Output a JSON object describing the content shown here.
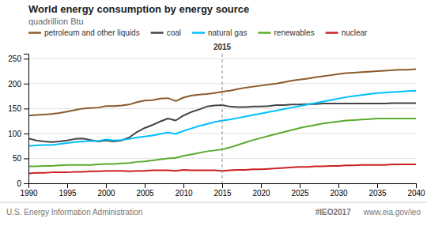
{
  "chart_data": {
    "type": "line",
    "title": "World energy consumption by energy source",
    "subtitle": "quadrillion Btu",
    "x": [
      1990,
      1991,
      1992,
      1993,
      1994,
      1995,
      1996,
      1997,
      1998,
      1999,
      2000,
      2001,
      2002,
      2003,
      2004,
      2005,
      2006,
      2007,
      2008,
      2009,
      2010,
      2011,
      2012,
      2013,
      2014,
      2015,
      2016,
      2017,
      2018,
      2019,
      2020,
      2021,
      2022,
      2023,
      2024,
      2025,
      2026,
      2027,
      2028,
      2029,
      2030,
      2031,
      2032,
      2033,
      2034,
      2035,
      2036,
      2037,
      2038,
      2039,
      2040
    ],
    "series": [
      {
        "name": "petroleum and other liquids",
        "color": "#8B5A2B",
        "values": [
          136,
          137,
          138,
          139,
          141,
          144,
          147,
          150,
          151,
          152,
          155,
          155,
          156,
          158,
          163,
          166,
          167,
          170,
          171,
          165,
          172,
          176,
          178,
          179,
          181,
          184,
          186,
          189,
          192,
          194,
          196,
          198,
          200,
          203,
          206,
          208,
          210,
          213,
          215,
          217,
          219,
          221,
          222,
          223,
          224,
          225,
          226,
          227,
          228,
          228,
          229
        ]
      },
      {
        "name": "coal",
        "color": "#444444",
        "values": [
          90,
          86,
          84,
          83,
          84,
          86,
          89,
          90,
          87,
          84,
          86,
          84,
          86,
          92,
          103,
          111,
          117,
          124,
          130,
          126,
          136,
          143,
          148,
          154,
          156,
          157,
          154,
          153,
          153,
          154,
          154,
          155,
          157,
          157,
          158,
          158,
          159,
          159,
          160,
          160,
          160,
          160,
          160,
          160,
          160,
          160,
          160,
          161,
          161,
          161,
          161
        ]
      },
      {
        "name": "natural gas",
        "color": "#00BFFF",
        "values": [
          75,
          76,
          77,
          77,
          79,
          81,
          83,
          84,
          85,
          85,
          88,
          86,
          87,
          89,
          92,
          94,
          96,
          99,
          102,
          99,
          105,
          110,
          115,
          119,
          123,
          126,
          128,
          131,
          134,
          137,
          140,
          143,
          146,
          149,
          152,
          155,
          158,
          161,
          164,
          167,
          170,
          173,
          175,
          177,
          179,
          181,
          182,
          183,
          184,
          185,
          186
        ]
      },
      {
        "name": "renewables",
        "color": "#5aab2e",
        "values": [
          34,
          34,
          35,
          35,
          36,
          37,
          37,
          37,
          37,
          38,
          39,
          39,
          40,
          41,
          43,
          44,
          46,
          48,
          50,
          51,
          55,
          58,
          61,
          64,
          66,
          68,
          72,
          77,
          82,
          87,
          91,
          95,
          99,
          103,
          107,
          111,
          114,
          117,
          120,
          122,
          124,
          126,
          127,
          128,
          129,
          130,
          130,
          130,
          130,
          130,
          130
        ]
      },
      {
        "name": "nuclear",
        "color": "#cc2222",
        "values": [
          20,
          21,
          21,
          22,
          22,
          22,
          23,
          23,
          24,
          24,
          25,
          25,
          25,
          24,
          25,
          25,
          26,
          26,
          26,
          25,
          27,
          26,
          26,
          26,
          26,
          25,
          26,
          27,
          27,
          28,
          28,
          29,
          30,
          31,
          32,
          33,
          33,
          34,
          34,
          35,
          35,
          36,
          36,
          37,
          37,
          37,
          37,
          38,
          38,
          38,
          38
        ]
      }
    ],
    "xlim": [
      1990,
      2040
    ],
    "ylim": [
      0,
      260
    ],
    "xticks": [
      1990,
      1995,
      2000,
      2005,
      2010,
      2015,
      2020,
      2025,
      2030,
      2035,
      2040
    ],
    "yticks": [
      0,
      50,
      100,
      150,
      200,
      250
    ],
    "grid": true,
    "legend": "top",
    "annotations": [
      {
        "text": "2015",
        "x": 2015
      }
    ],
    "footer": [
      "U.S. Energy Information Administration",
      "#IEO2017",
      "www.eia.gov/ieo"
    ]
  }
}
